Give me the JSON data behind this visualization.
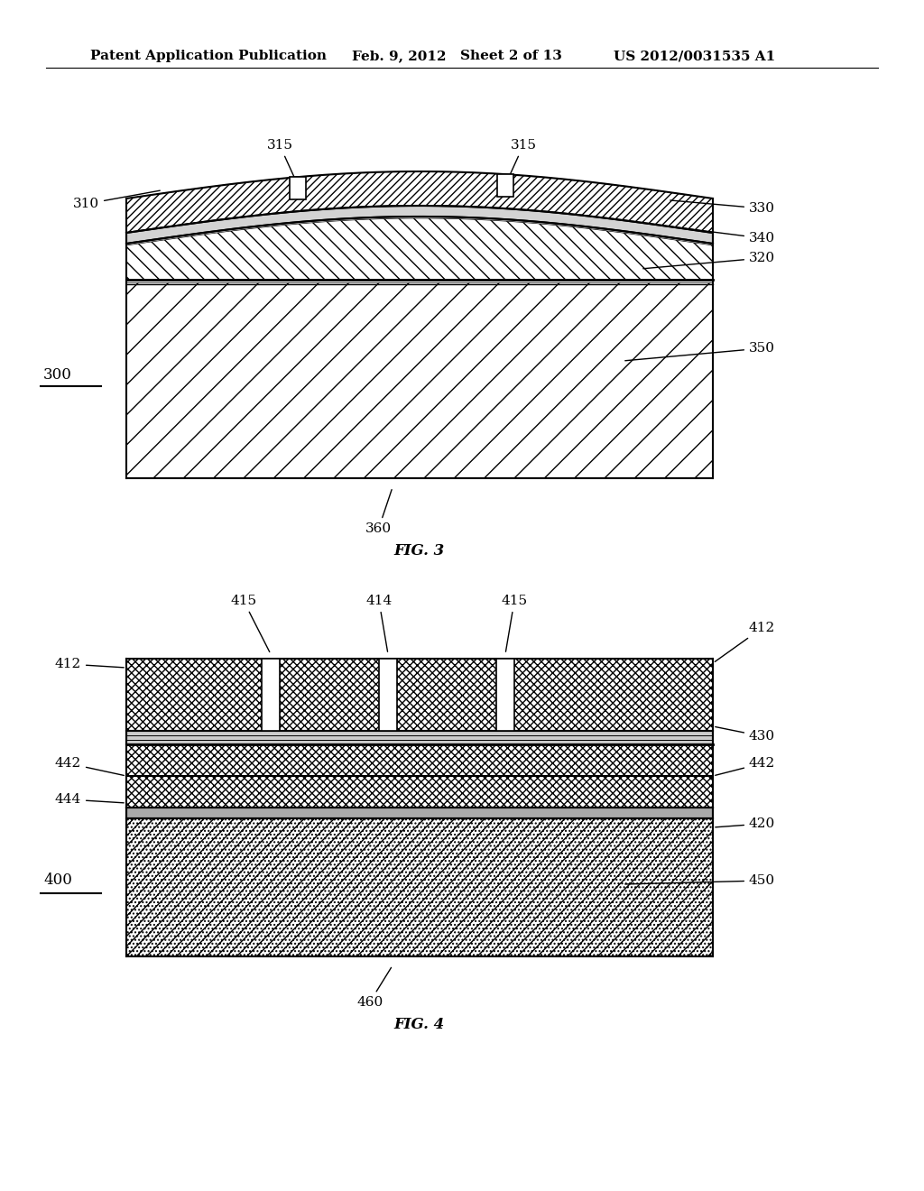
{
  "bg_color": "#ffffff",
  "header_text": "Patent Application Publication",
  "header_date": "Feb. 9, 2012",
  "header_sheet": "Sheet 2 of 13",
  "header_patent": "US 2012/0031535 A1",
  "fig3_label": "FIG. 3",
  "fig4_label": "FIG. 4",
  "fig3_number": "300",
  "fig4_number": "400",
  "line_color": "#000000",
  "hatch_color": "#000000",
  "light_gray": "#cccccc",
  "dark_gray": "#888888"
}
